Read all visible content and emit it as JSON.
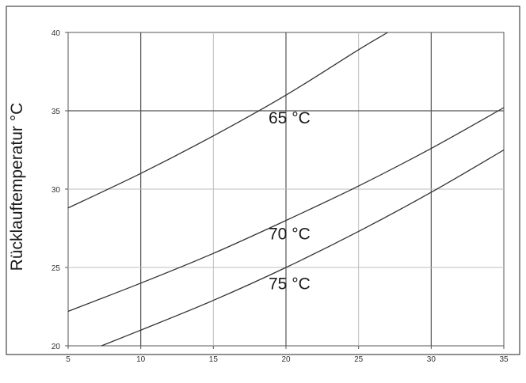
{
  "chart_data": {
    "type": "line",
    "ylabel": "Rücklauftemperatur °C",
    "xlabel": "",
    "xlim": [
      5,
      35
    ],
    "ylim": [
      20,
      40
    ],
    "x_ticks": [
      "5",
      "10",
      "15",
      "20",
      "25",
      "30",
      "35"
    ],
    "y_ticks": [
      "20",
      "25",
      "30",
      "35",
      "40"
    ],
    "grid": true,
    "series": [
      {
        "name": "65 °C",
        "x": [
          5,
          10,
          15,
          20,
          25,
          27
        ],
        "values": [
          28.8,
          31.0,
          33.4,
          36.0,
          38.9,
          40.0
        ],
        "label_at": [
          18.8,
          34.2
        ]
      },
      {
        "name": "70 °C",
        "x": [
          5,
          10,
          15,
          20,
          25,
          30,
          35
        ],
        "values": [
          22.2,
          24.0,
          25.9,
          28.0,
          30.2,
          32.6,
          35.2
        ],
        "label_at": [
          18.8,
          26.8
        ]
      },
      {
        "name": "75 °C",
        "x": [
          7.3,
          10,
          15,
          20,
          25,
          30,
          35
        ],
        "values": [
          20.0,
          21.0,
          22.9,
          25.0,
          27.3,
          29.8,
          32.5
        ],
        "label_at": [
          18.8,
          23.6
        ]
      }
    ]
  }
}
